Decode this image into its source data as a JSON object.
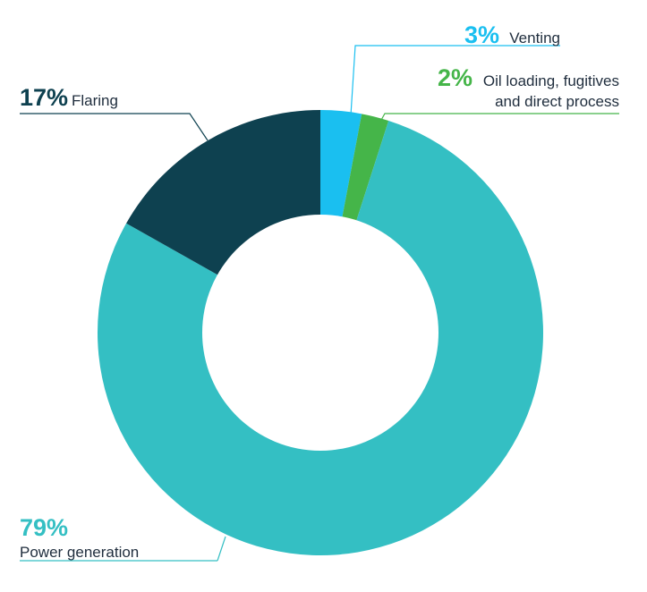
{
  "chart_data": {
    "type": "pie",
    "donut": true,
    "title": "",
    "series": [
      {
        "name": "Venting",
        "value": 3,
        "percent_label": "3%",
        "label_lines": [
          "Venting"
        ],
        "color": "#1ABFF0",
        "pct_color": "#1ABFF0"
      },
      {
        "name": "Oil loading, fugitives and direct process",
        "value": 2,
        "percent_label": "2%",
        "label_lines": [
          "Oil loading, fugitives",
          "and direct process"
        ],
        "color": "#45B549",
        "pct_color": "#45B549"
      },
      {
        "name": "Power generation",
        "value": 79,
        "percent_label": "79%",
        "label_lines": [
          "Power generation"
        ],
        "color": "#34BFC3",
        "pct_color": "#34BFC3"
      },
      {
        "name": "Flaring",
        "value": 17,
        "percent_label": "17%",
        "label_lines": [
          "Flaring"
        ],
        "color": "#0E4150",
        "pct_color": "#0E4150"
      }
    ]
  }
}
